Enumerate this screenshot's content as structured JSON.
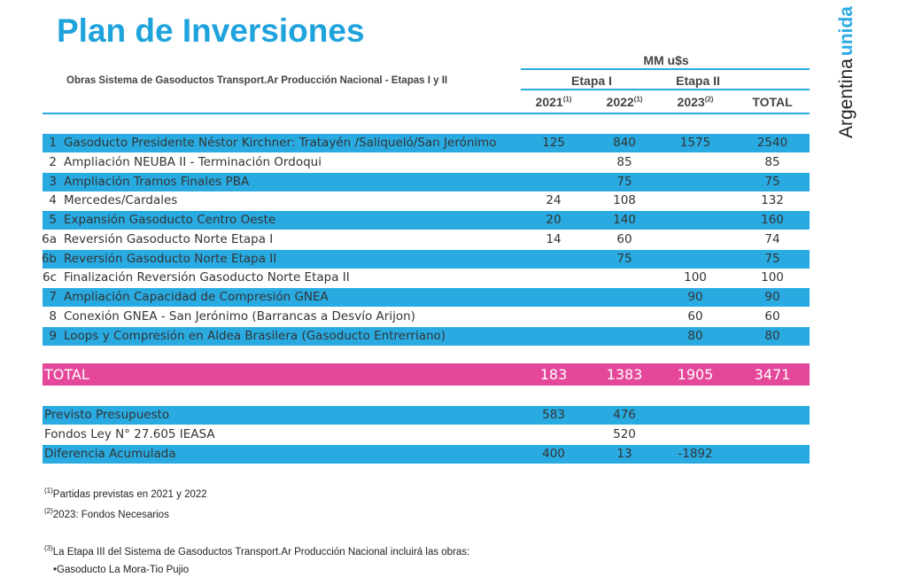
{
  "header": {
    "title": "Plan de Inversiones",
    "subtitle": "Obras Sistema de Gasoductos Transport.Ar Producción Nacional - Etapas I y II",
    "unit": "MM u$s",
    "stages": [
      "Etapa I",
      "Etapa II"
    ],
    "columns": [
      {
        "label": "2021",
        "note": "(1)"
      },
      {
        "label": "2022",
        "note": "(1)"
      },
      {
        "label": "2023",
        "note": "(2)"
      },
      {
        "label": "TOTAL"
      }
    ]
  },
  "logo": {
    "brand": "Argentina",
    "tag": "unida"
  },
  "table": {
    "rows": [
      {
        "num": "1",
        "name": "Gasoducto Presidente Néstor Kirchner: Tratayén /Saliqueló/San Jerónimo",
        "values": [
          125,
          840,
          1575,
          2540
        ]
      },
      {
        "num": "2",
        "name": "Ampliación NEUBA II - Terminación Ordoqui",
        "values": [
          null,
          85,
          null,
          85
        ]
      },
      {
        "num": "3",
        "name": "Ampliación Tramos Finales PBA",
        "values": [
          null,
          75,
          null,
          75
        ]
      },
      {
        "num": "4",
        "name": "Mercedes/Cardales",
        "values": [
          24,
          108,
          null,
          132
        ]
      },
      {
        "num": "5",
        "name": "Expansión Gasoducto Centro Oeste",
        "values": [
          20,
          140,
          null,
          160
        ]
      },
      {
        "num": "6a",
        "name": "Reversión Gasoducto Norte Etapa I",
        "values": [
          14,
          60,
          null,
          74
        ]
      },
      {
        "num": "6b",
        "name": "Reversión Gasoducto Norte Etapa II",
        "values": [
          null,
          75,
          null,
          75
        ]
      },
      {
        "num": "6c",
        "name": "Finalización Reversión Gasoducto Norte Etapa II",
        "values": [
          null,
          null,
          100,
          100
        ]
      },
      {
        "num": "7",
        "name": "Ampliación Capacidad de Compresión GNEA",
        "values": [
          null,
          null,
          90,
          90
        ]
      },
      {
        "num": "8",
        "name": "Conexión GNEA - San Jerónimo (Barrancas a Desvío Arijon)",
        "values": [
          null,
          null,
          60,
          60
        ]
      },
      {
        "num": "9",
        "name": "Loops y Compresión en Aldea Brasilera (Gasoducto Entrerriano)",
        "values": [
          null,
          null,
          80,
          80
        ]
      }
    ]
  },
  "total": {
    "label": "TOTAL",
    "values": [
      183,
      1383,
      1905,
      3471
    ]
  },
  "budget": {
    "rows": [
      {
        "name": "Previsto Presupuesto",
        "values": [
          583,
          476,
          null
        ]
      },
      {
        "name": "Fondos Ley N° 27.605 IEASA",
        "values": [
          null,
          520,
          null
        ]
      },
      {
        "name": "Diferencia Acumulada",
        "values": [
          400,
          13,
          -1892
        ]
      }
    ]
  },
  "footnotes": [
    {
      "mark": "(1)",
      "text": "Partidas previstas en 2021 y 2022"
    },
    {
      "mark": "(2)",
      "text": "2023: Fondos Necesarios"
    },
    {
      "mark": "(3)",
      "text": "La Etapa III del Sistema de Gasoductos Transport.Ar Producción Nacional incluirá las obras:"
    }
  ],
  "bullets": [
    "•Gasoducto La Mora-Tio Pujio"
  ]
}
